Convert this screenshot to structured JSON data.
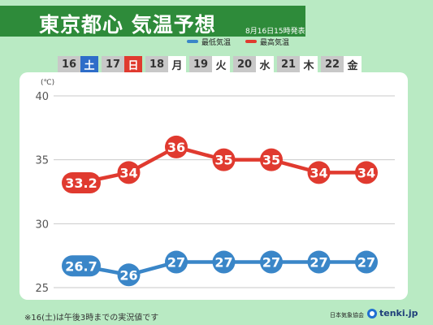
{
  "header": {
    "title": "東京都心 気温予想",
    "issued": "8月16日15時発表"
  },
  "legend": {
    "low_label": "最低気温",
    "high_label": "最高気温"
  },
  "days": [
    {
      "date": "16",
      "weekday": "土",
      "type": "sat"
    },
    {
      "date": "17",
      "weekday": "日",
      "type": "sun"
    },
    {
      "date": "18",
      "weekday": "月",
      "type": "weekday"
    },
    {
      "date": "19",
      "weekday": "火",
      "type": "weekday"
    },
    {
      "date": "20",
      "weekday": "水",
      "type": "weekday"
    },
    {
      "date": "21",
      "weekday": "木",
      "type": "weekday"
    },
    {
      "date": "22",
      "weekday": "金",
      "type": "weekday"
    }
  ],
  "colors": {
    "high": "#e03a2f",
    "low": "#3a86c8",
    "header_bg": "#2e8b3a",
    "page_bg": "#b9eac3"
  },
  "chart_data": {
    "type": "line",
    "unit_label": "(℃)",
    "x": [
      "16",
      "17",
      "18",
      "19",
      "20",
      "21",
      "22"
    ],
    "ylim": [
      25,
      40
    ],
    "yticks": [
      25,
      30,
      35,
      40
    ],
    "grid": true,
    "legend_position": "top-right",
    "series": [
      {
        "name": "最高気温",
        "values": [
          33.2,
          34,
          36,
          35,
          35,
          34,
          34
        ],
        "labels": [
          "33.2",
          "34",
          "36",
          "35",
          "35",
          "34",
          "34"
        ]
      },
      {
        "name": "最低気温",
        "values": [
          26.7,
          26,
          27,
          27,
          27,
          27,
          27
        ],
        "labels": [
          "26.7",
          "26",
          "27",
          "27",
          "27",
          "27",
          "27"
        ]
      }
    ]
  },
  "footer": {
    "note": "※16(土)は午後3時までの実況値です",
    "credit": "日本気象協会",
    "brand": "tenki.jp"
  }
}
